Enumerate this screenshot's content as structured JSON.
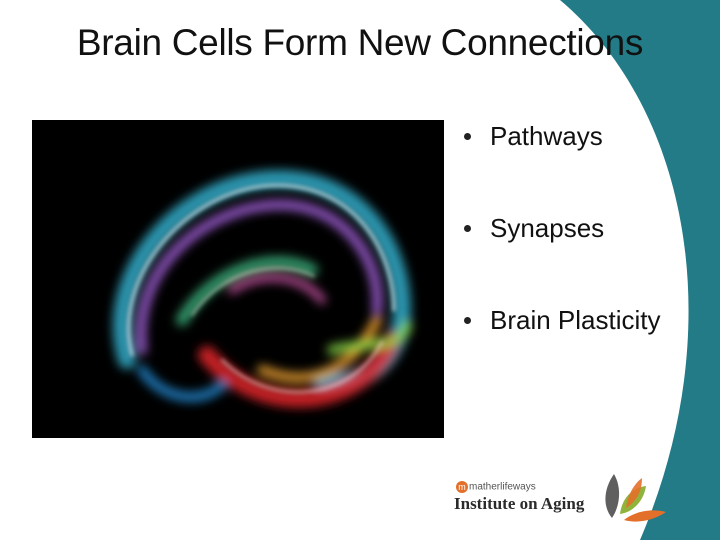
{
  "slide": {
    "title": "Brain Cells Form New Connections",
    "bullets": [
      "Pathways",
      "Synapses",
      "Brain Plasticity"
    ]
  },
  "image": {
    "icon": "glowing-brain-image"
  },
  "logo": {
    "brand": "matherlifeways",
    "name": "Institute on Aging"
  },
  "colors": {
    "background": "#ffffff",
    "arc": "#237b87",
    "text": "#111111",
    "logo_orange": "#e3702a",
    "logo_green": "#8fb33b",
    "logo_gray": "#5f5f5f"
  }
}
